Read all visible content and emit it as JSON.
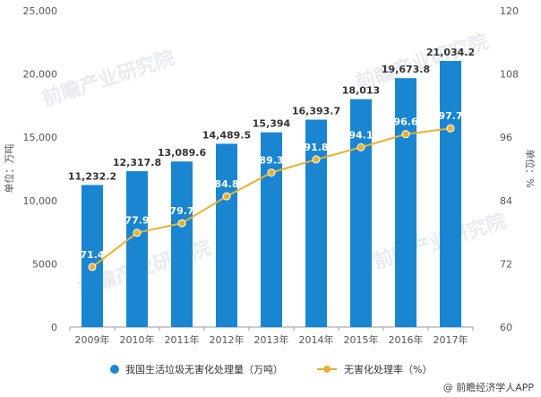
{
  "chart_data": {
    "type": "bar",
    "categories": [
      "2009年",
      "2010年",
      "2011年",
      "2012年",
      "2013年",
      "2014年",
      "2015年",
      "2016年",
      "2017年"
    ],
    "series": [
      {
        "name": "我国生活垃圾无害化处理量（万吨）",
        "type": "bar",
        "axis": "left",
        "values": [
          11232.2,
          12317.8,
          13089.6,
          14489.5,
          15394,
          16393.7,
          18013,
          19673.8,
          21034.2
        ],
        "labels": [
          "11,232.2",
          "12,317.8",
          "13,089.6",
          "14,489.5",
          "15,394",
          "16,393.7",
          "18,013",
          "19,673.8",
          "21,034.2"
        ],
        "color": "#1a85d0"
      },
      {
        "name": "无害化处理率（%）",
        "type": "line",
        "axis": "right",
        "values": [
          71.4,
          77.9,
          79.7,
          84.8,
          89.3,
          91.8,
          94.1,
          96.6,
          97.7
        ],
        "labels": [
          "71.4",
          "77.9",
          "79.7",
          "84.8",
          "89.3",
          "91.8",
          "94.1",
          "96.6",
          "97.7"
        ],
        "color": "#e8b12f"
      }
    ],
    "ylabel": "单位：万吨",
    "y2label": "单位：%",
    "ylim": [
      0,
      25000
    ],
    "y2lim": [
      60,
      120
    ],
    "yticks": [
      "0",
      "5000",
      "10,000",
      "15,000",
      "20,000",
      "25,000"
    ],
    "y2ticks": [
      "60",
      "72",
      "84",
      "96",
      "108",
      "120"
    ],
    "grid": false,
    "legend_position": "bottom"
  },
  "source": "@ 前瞻经济学人APP",
  "watermark": "前瞻产业研究院"
}
